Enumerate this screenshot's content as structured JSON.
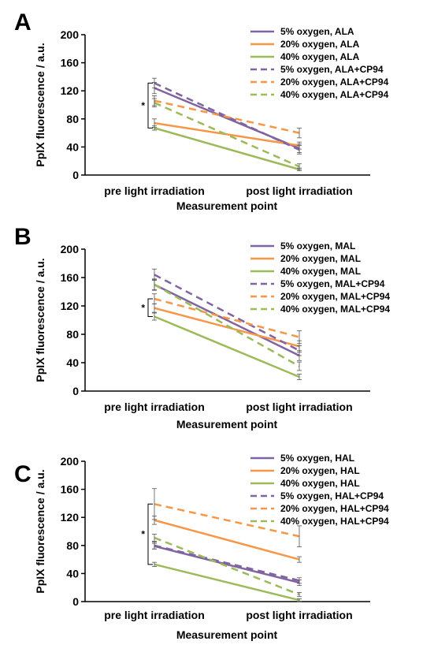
{
  "figure": {
    "colors": {
      "purple": "#8064a2",
      "orange": "#f79646",
      "green": "#9bbb59"
    }
  },
  "chart_data": [
    {
      "panel": "A",
      "type": "line",
      "categories": [
        "pre light irradiation",
        "post light irradiation"
      ],
      "xlabel": "Measurement point",
      "ylabel": "PpIX fluorescence  / a.u.",
      "ylim": [
        0,
        200
      ],
      "yticks": [
        "0",
        "40",
        "80",
        "120",
        "160",
        "200"
      ],
      "legend_position": "top-right",
      "significance": "*",
      "series": [
        {
          "name": "5% oxygen, ALA",
          "values": [
            124,
            38
          ],
          "errors": [
            8,
            6
          ],
          "color": "#8064a2",
          "dash": false
        },
        {
          "name": "20% oxygen, ALA",
          "values": [
            74,
            42
          ],
          "errors": [
            6,
            5
          ],
          "color": "#f79646",
          "dash": false
        },
        {
          "name": "40% oxygen, ALA",
          "values": [
            67,
            8
          ],
          "errors": [
            3,
            2
          ],
          "color": "#9bbb59",
          "dash": false
        },
        {
          "name": "5% oxygen, ALA+CP94",
          "values": [
            131,
            36
          ],
          "errors": [
            7,
            6
          ],
          "color": "#8064a2",
          "dash": true
        },
        {
          "name": "20% oxygen, ALA+CP94",
          "values": [
            106,
            60
          ],
          "errors": [
            7,
            7
          ],
          "color": "#f79646",
          "dash": true
        },
        {
          "name": "40% oxygen, ALA+CP94",
          "values": [
            103,
            12
          ],
          "errors": [
            6,
            4
          ],
          "color": "#9bbb59",
          "dash": true
        }
      ]
    },
    {
      "panel": "B",
      "type": "line",
      "categories": [
        "pre light irradiation",
        "post light irradiation"
      ],
      "xlabel": "Measurement point",
      "ylabel": "PpIX fluorescence  / a.u.",
      "ylim": [
        0,
        200
      ],
      "yticks": [
        "0",
        "40",
        "80",
        "120",
        "160",
        "200"
      ],
      "legend_position": "top-right",
      "significance": "*",
      "series": [
        {
          "name": "5% oxygen, MAL",
          "values": [
            150,
            50
          ],
          "errors": [
            8,
            7
          ],
          "color": "#8064a2",
          "dash": false
        },
        {
          "name": "20% oxygen, MAL",
          "values": [
            117,
            63
          ],
          "errors": [
            6,
            8
          ],
          "color": "#f79646",
          "dash": false
        },
        {
          "name": "40% oxygen, MAL",
          "values": [
            105,
            20
          ],
          "errors": [
            5,
            4
          ],
          "color": "#9bbb59",
          "dash": false
        },
        {
          "name": "5% oxygen, MAL+CP94",
          "values": [
            164,
            57
          ],
          "errors": [
            8,
            7
          ],
          "color": "#8064a2",
          "dash": true
        },
        {
          "name": "20% oxygen, MAL+CP94",
          "values": [
            130,
            76
          ],
          "errors": [
            7,
            9
          ],
          "color": "#f79646",
          "dash": true
        },
        {
          "name": "40% oxygen, MAL+CP94",
          "values": [
            150,
            35
          ],
          "errors": [
            7,
            6
          ],
          "color": "#9bbb59",
          "dash": true
        }
      ]
    },
    {
      "panel": "C",
      "type": "line",
      "categories": [
        "pre light irradiation",
        "post light irradiation"
      ],
      "xlabel": "Measurement point",
      "ylabel": "PpIX fluorescence  / a.u.",
      "ylim": [
        0,
        200
      ],
      "yticks": [
        "0",
        "40",
        "80",
        "120",
        "160",
        "200"
      ],
      "legend_position": "top-right",
      "significance": "*",
      "series": [
        {
          "name": "5% oxygen, HAL",
          "values": [
            79,
            27
          ],
          "errors": [
            4,
            4
          ],
          "color": "#8064a2",
          "dash": false
        },
        {
          "name": "20% oxygen, HAL",
          "values": [
            116,
            60
          ],
          "errors": [
            6,
            4
          ],
          "color": "#f79646",
          "dash": false
        },
        {
          "name": "40% oxygen, HAL",
          "values": [
            53,
            2
          ],
          "errors": [
            3,
            2
          ],
          "color": "#9bbb59",
          "dash": false
        },
        {
          "name": "5% oxygen, HAL+CP94",
          "values": [
            80,
            30
          ],
          "errors": [
            5,
            4
          ],
          "color": "#8064a2",
          "dash": true
        },
        {
          "name": "20% oxygen, HAL+CP94",
          "values": [
            139,
            93
          ],
          "errors": [
            22,
            15
          ],
          "color": "#f79646",
          "dash": true
        },
        {
          "name": "40% oxygen, HAL+CP94",
          "values": [
            91,
            10
          ],
          "errors": [
            5,
            3
          ],
          "color": "#9bbb59",
          "dash": true
        }
      ]
    }
  ]
}
